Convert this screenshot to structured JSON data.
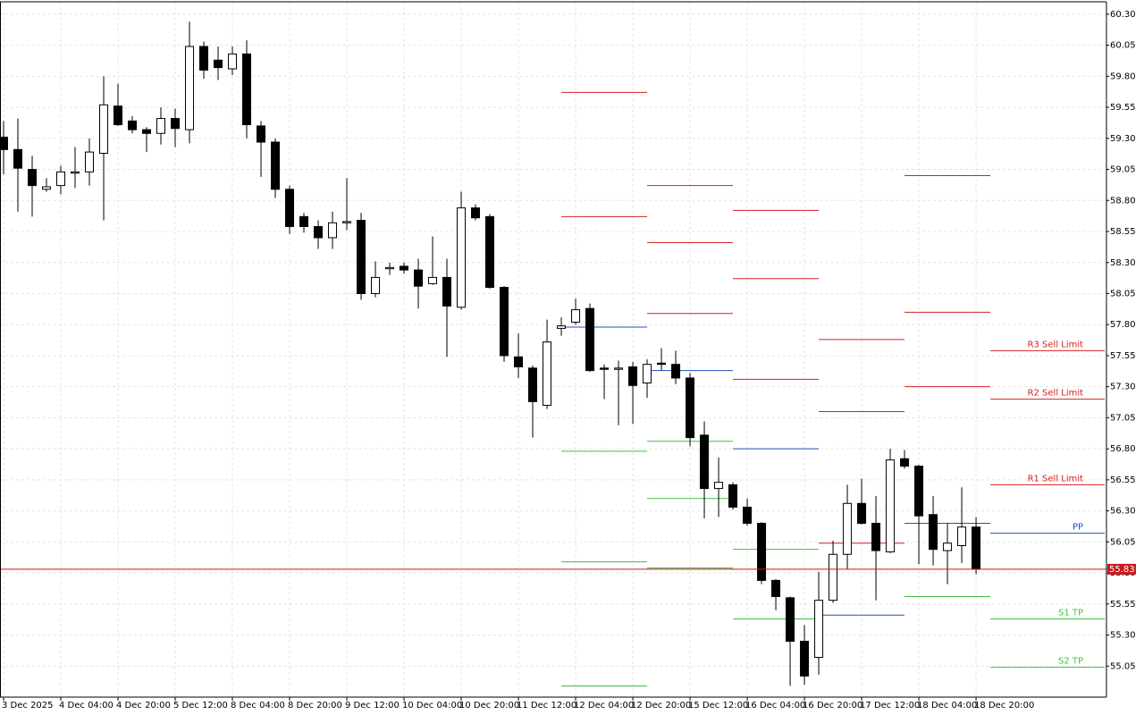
{
  "chart_data": {
    "type": "candlestick",
    "categories": [
      "3 Dec 2025",
      null,
      null,
      null,
      "4 Dec 04:00",
      null,
      null,
      null,
      "4 Dec 20:00",
      null,
      null,
      null,
      "5 Dec 12:00",
      null,
      null,
      null,
      "8 Dec 04:00",
      null,
      null,
      null,
      "8 Dec 20:00",
      null,
      null,
      null,
      "9 Dec 12:00",
      null,
      null,
      null,
      "10 Dec 04:00",
      null,
      null,
      null,
      "10 Dec 20:00",
      null,
      null,
      null,
      "11 Dec 12:00",
      null,
      null,
      null,
      "12 Dec 04:00",
      null,
      null,
      null,
      "12 Dec 20:00",
      null,
      null,
      null,
      "15 Dec 12:00",
      null,
      null,
      null,
      "16 Dec 04:00",
      null,
      null,
      null,
      "16 Dec 20:00",
      null,
      null,
      null,
      "17 Dec 12:00",
      null,
      null,
      null,
      "18 Dec 04:00",
      null,
      null,
      null,
      "18 Dec 20:00"
    ],
    "open": [
      59.31,
      59.21,
      59.05,
      58.89,
      58.92,
      59.02,
      59.03,
      59.18,
      59.56,
      59.44,
      59.37,
      59.34,
      59.46,
      59.37,
      60.04,
      59.93,
      59.86,
      59.98,
      59.4,
      59.27,
      58.89,
      58.67,
      58.59,
      58.5,
      58.62,
      58.64,
      58.05,
      58.25,
      58.27,
      58.24,
      58.13,
      58.18,
      57.94,
      58.74,
      58.67,
      58.1,
      57.54,
      57.45,
      57.15,
      57.77,
      57.82,
      57.93,
      57.45,
      57.44,
      57.46,
      57.33,
      57.49,
      57.48,
      57.37,
      56.91,
      56.48,
      56.51,
      56.33,
      56.2,
      55.74,
      55.6,
      55.25,
      55.12,
      55.58,
      55.95,
      56.36,
      56.2,
      55.97,
      56.72,
      56.66,
      56.27,
      55.98,
      56.02,
      56.17
    ],
    "high": [
      59.44,
      59.46,
      59.16,
      58.98,
      59.08,
      59.23,
      59.3,
      59.8,
      59.74,
      59.48,
      59.39,
      59.55,
      59.54,
      60.24,
      60.08,
      60.04,
      60.04,
      60.09,
      59.44,
      59.3,
      58.92,
      58.7,
      58.64,
      58.71,
      58.98,
      58.7,
      58.31,
      58.3,
      58.3,
      58.33,
      58.51,
      58.33,
      58.87,
      58.77,
      58.69,
      58.11,
      57.73,
      57.47,
      57.84,
      57.86,
      58.01,
      57.97,
      57.48,
      57.51,
      57.5,
      57.52,
      57.61,
      57.59,
      57.41,
      57.02,
      56.73,
      56.53,
      56.4,
      56.21,
      55.75,
      55.61,
      55.38,
      55.81,
      56.06,
      56.51,
      56.56,
      56.42,
      56.8,
      56.79,
      56.67,
      56.42,
      56.2,
      56.49,
      56.25
    ],
    "low": [
      59.01,
      58.71,
      58.67,
      58.87,
      58.85,
      58.9,
      58.92,
      58.64,
      59.4,
      59.34,
      59.19,
      59.25,
      59.23,
      59.26,
      59.78,
      59.77,
      59.81,
      59.3,
      58.99,
      58.82,
      58.53,
      58.54,
      58.41,
      58.41,
      58.56,
      58.0,
      58.02,
      58.2,
      58.21,
      57.93,
      58.12,
      57.54,
      57.92,
      58.64,
      58.09,
      57.5,
      57.37,
      56.89,
      57.12,
      57.71,
      57.8,
      57.42,
      57.2,
      56.99,
      57.0,
      57.21,
      57.43,
      57.32,
      56.82,
      56.24,
      56.25,
      56.31,
      56.18,
      55.71,
      55.5,
      54.89,
      54.9,
      54.98,
      55.56,
      55.83,
      56.19,
      55.58,
      55.96,
      56.64,
      55.87,
      55.86,
      55.71,
      55.88,
      55.79
    ],
    "close": [
      59.21,
      59.06,
      58.92,
      58.91,
      59.03,
      59.03,
      59.19,
      59.57,
      59.41,
      59.37,
      59.34,
      59.46,
      59.38,
      60.04,
      59.85,
      59.87,
      59.98,
      59.41,
      59.27,
      58.89,
      58.59,
      58.59,
      58.5,
      58.62,
      58.63,
      58.05,
      58.18,
      58.26,
      58.24,
      58.11,
      58.18,
      57.95,
      58.74,
      58.66,
      58.1,
      57.55,
      57.46,
      57.18,
      57.66,
      57.79,
      57.92,
      57.43,
      57.44,
      57.45,
      57.31,
      57.48,
      57.48,
      57.37,
      56.89,
      56.48,
      56.53,
      56.33,
      56.2,
      55.74,
      55.61,
      55.25,
      54.97,
      55.58,
      55.95,
      56.36,
      56.2,
      55.98,
      56.71,
      56.66,
      56.26,
      55.99,
      56.04,
      56.17,
      55.83
    ],
    "up_color": "#ffffff",
    "down_color": "#000000",
    "wick_color": "#000000",
    "xlim": [
      -0.25,
      77.12
    ],
    "ylim": [
      54.8,
      60.4
    ],
    "yticks": [
      55.05,
      {
        "value": 55.3,
        "label": "55.30"
      },
      55.55,
      {
        "value": 55.8,
        "label": "55.80"
      },
      56.05,
      {
        "value": 56.3,
        "label": "56.30"
      },
      56.55,
      {
        "value": 56.8,
        "label": "56.80"
      },
      57.05,
      {
        "value": 57.3,
        "label": "57.30"
      },
      57.55,
      {
        "value": 57.8,
        "label": "57.80"
      },
      58.05,
      {
        "value": 58.3,
        "label": "58.30"
      },
      58.55,
      {
        "value": 58.8,
        "label": "58.80"
      },
      59.05,
      {
        "value": 59.3,
        "label": "59.30"
      },
      59.55,
      {
        "value": 59.8,
        "label": "59.80"
      },
      60.05,
      {
        "value": 60.3,
        "label": "60.30"
      }
    ],
    "grid": true,
    "last_price": 55.83,
    "last_price_color": "#c8181e",
    "level_colors": {
      "resistance": "#d42020",
      "pivot": "#2050b8",
      "support": "#40c040"
    },
    "levels": [
      {
        "x": [
          39,
          45
        ],
        "resistance": [
          59.67,
          58.67
        ],
        "pivot": 57.78,
        "support": [
          56.78,
          55.89,
          54.89
        ]
      },
      {
        "x": [
          45,
          51
        ],
        "resistance": [
          58.92,
          58.46,
          57.89
        ],
        "pivot": 57.43,
        "support": [
          56.86,
          56.4,
          55.84
        ]
      },
      {
        "x": [
          51,
          57
        ],
        "resistance": [
          58.72,
          58.17,
          57.36
        ],
        "pivot": 56.8,
        "support": [
          55.99,
          55.43
        ]
      },
      {
        "x": [
          57,
          63
        ],
        "resistance": [
          57.68,
          57.1,
          56.04
        ],
        "pivot": 55.46,
        "support": []
      },
      {
        "x": [
          63,
          69
        ],
        "resistance": [
          59.0,
          57.9,
          57.3
        ],
        "pivot": 56.2,
        "support": [
          55.61
        ]
      },
      {
        "x": [
          69,
          77
        ],
        "resistance": [
          57.59,
          57.2,
          56.51
        ],
        "pivot": 56.12,
        "support": [
          55.43,
          55.04
        ],
        "resistance_labels": [
          "R3 Sell Limit",
          "R2 Sell Limit",
          "R1 Sell Limit"
        ],
        "pivot_label": "PP",
        "support_labels": [
          "S1 TP",
          "S2 TP"
        ]
      }
    ]
  }
}
